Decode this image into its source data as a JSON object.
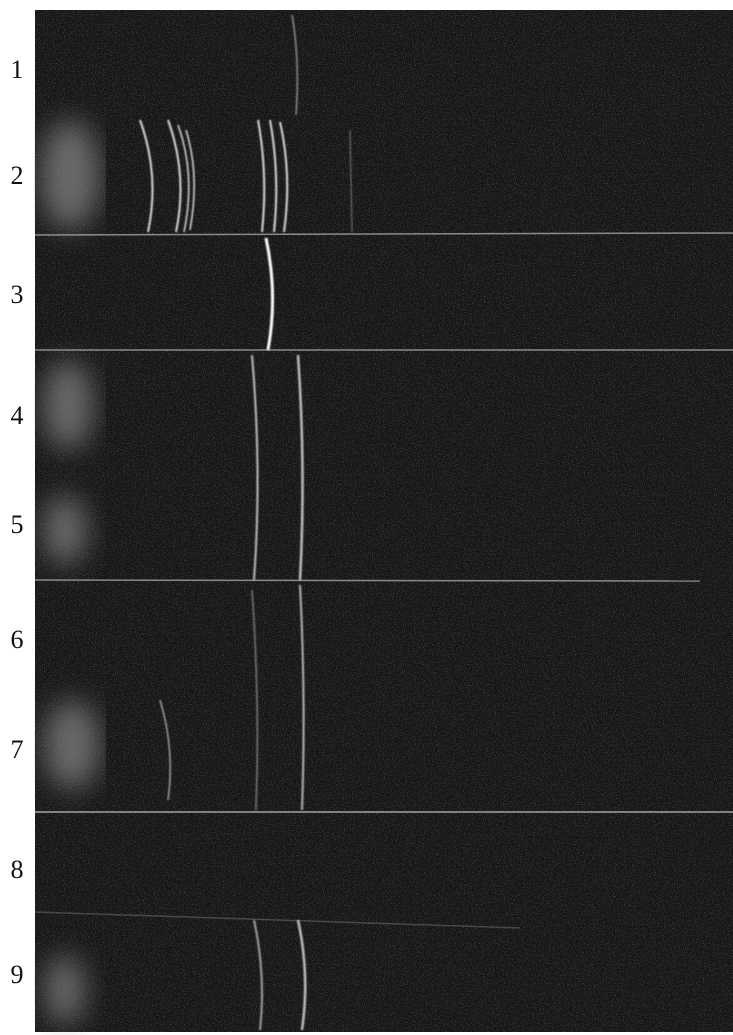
{
  "strip_labels": [
    "1",
    "2",
    "3",
    "4",
    "5",
    "6",
    "7",
    "8",
    "9"
  ]
}
